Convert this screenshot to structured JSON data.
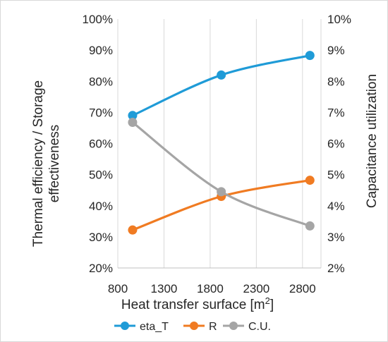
{
  "chart_data": {
    "type": "line",
    "xlabel": "Heat transfer surface [m",
    "xlabel_sup": "2",
    "xlabel_close": "]",
    "ylabel_left_line1": "Thermal efficiency / Storage",
    "ylabel_left_line2": "effectiveness",
    "ylabel_right": "Capacitance utilization",
    "xlim": [
      800,
      3000
    ],
    "x_ticks": [
      "800",
      "1300",
      "1800",
      "2300",
      "2800"
    ],
    "y_left_lim": [
      20,
      100
    ],
    "y_left_ticks": [
      "20%",
      "30%",
      "40%",
      "50%",
      "60%",
      "70%",
      "80%",
      "90%",
      "100%"
    ],
    "y_right_lim": [
      2,
      10
    ],
    "y_right_ticks": [
      "2%",
      "3%",
      "4%",
      "5%",
      "6%",
      "7%",
      "8%",
      "9%",
      "10%"
    ],
    "grid": "vertical",
    "legend_position": "bottom",
    "series": [
      {
        "name": "eta_T",
        "axis": "left",
        "color": "#1f9bd7",
        "x": [
          960,
          1920,
          2880
        ],
        "y": [
          69,
          82,
          88.3
        ]
      },
      {
        "name": "R",
        "axis": "left",
        "color": "#f07b22",
        "x": [
          960,
          1920,
          2880
        ],
        "y": [
          32.2,
          43,
          48.2
        ]
      },
      {
        "name": "C.U.",
        "axis": "right",
        "color": "#a5a5a5",
        "x": [
          960,
          1920,
          2880
        ],
        "y": [
          6.68,
          4.45,
          3.35
        ]
      }
    ]
  }
}
